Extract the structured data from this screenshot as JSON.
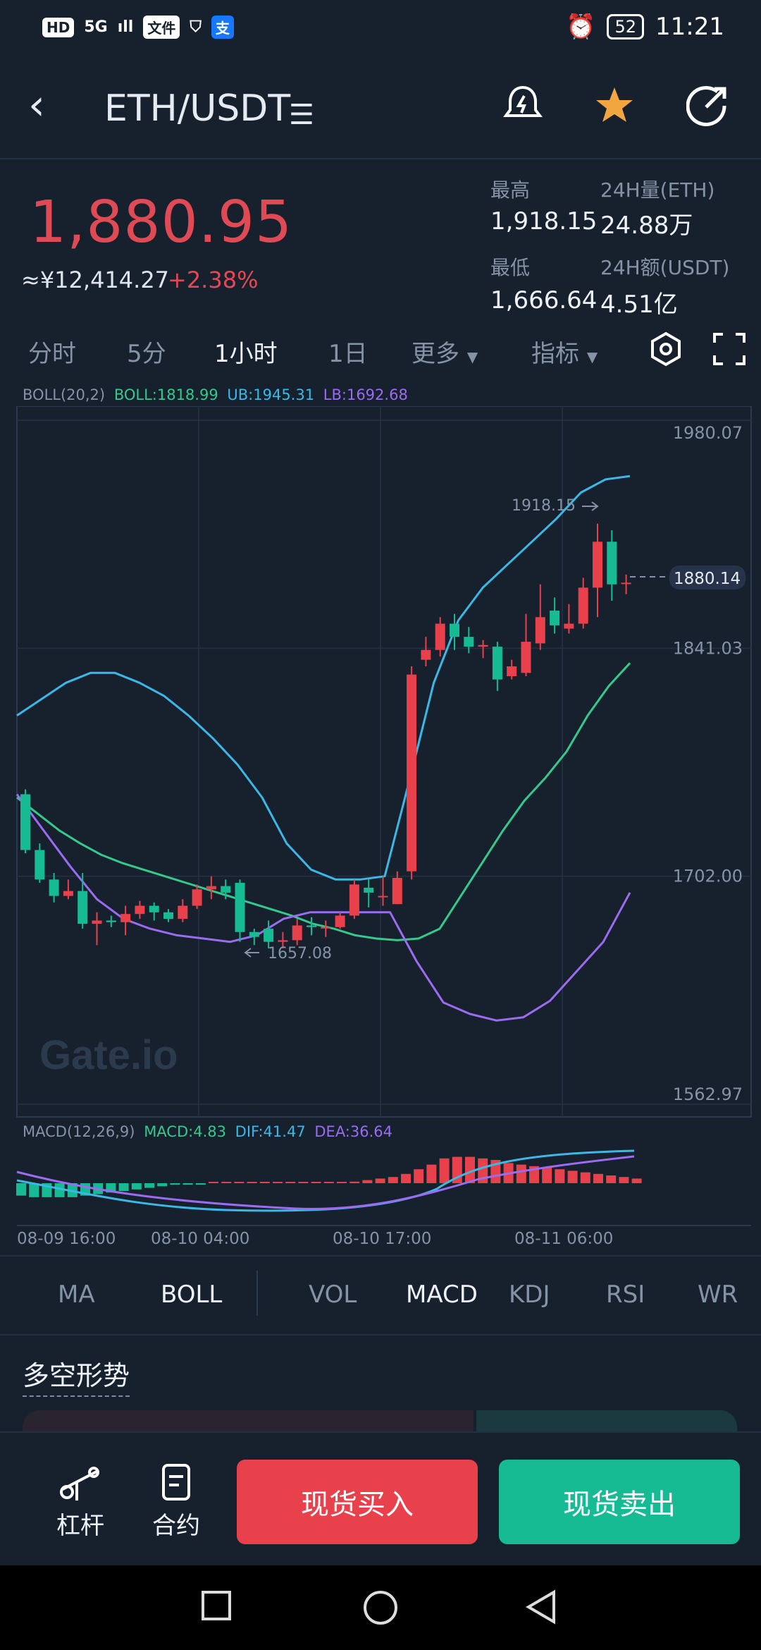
{
  "status_bar": {
    "left": [
      "HD",
      "5G",
      "ıll",
      "文件",
      "⛉",
      "支"
    ],
    "battery": "52",
    "time": "11:21"
  },
  "header": {
    "back_icon": "chevron-left-icon",
    "pair": "ETH/USDT",
    "pair_menu_icon": "list-icon",
    "alert_icon": "bell-lightning-icon",
    "favorite_icon": "star-icon",
    "share_icon": "share-icon"
  },
  "ticker": {
    "price": "1,880.95",
    "cny": "≈¥12,414.27",
    "change": "+2.38%",
    "high_label": "最高",
    "high": "1,918.15",
    "low_label": "最低",
    "low": "1,666.64",
    "vol_label": "24H量(ETH)",
    "vol": "24.88万",
    "amt_label": "24H额(USDT)",
    "amt": "4.51亿"
  },
  "timeframes": {
    "items": [
      "分时",
      "5分",
      "1小时",
      "1日",
      "更多",
      "指标"
    ],
    "active": "1小时",
    "settings_icon": "hexagon-gear-icon",
    "fullscreen_icon": "fullscreen-icon"
  },
  "chart_data": {
    "type": "candlestick",
    "main_legend": {
      "label": "BOLL(20,2)",
      "boll": "BOLL:1818.99",
      "ub": "UB:1945.31",
      "lb": "LB:1692.68"
    },
    "y_ticks": [
      "1980.07",
      "1841.03",
      "1702.00",
      "1562.97"
    ],
    "y_range": [
      1562.97,
      1980.07
    ],
    "high_marker": "1918.15",
    "low_marker": "1657.08",
    "last_price_tag": "1880.14",
    "watermark": "Gate.io",
    "candles": [
      [
        1752,
        1718,
        1755,
        1716
      ],
      [
        1718,
        1700,
        1722,
        1698
      ],
      [
        1700,
        1690,
        1704,
        1686
      ],
      [
        1690,
        1693,
        1700,
        1688
      ],
      [
        1693,
        1673,
        1704,
        1670
      ],
      [
        1673,
        1675,
        1680,
        1660
      ],
      [
        1675,
        1674,
        1678,
        1671
      ],
      [
        1674,
        1679,
        1684,
        1666
      ],
      [
        1679,
        1684,
        1687,
        1676
      ],
      [
        1684,
        1680,
        1686,
        1675
      ],
      [
        1680,
        1676,
        1682,
        1674
      ],
      [
        1676,
        1684,
        1688,
        1674
      ],
      [
        1684,
        1694,
        1697,
        1682
      ],
      [
        1694,
        1696,
        1702,
        1688
      ],
      [
        1696,
        1692,
        1700,
        1688
      ],
      [
        1698,
        1668,
        1700,
        1662
      ],
      [
        1668,
        1665,
        1670,
        1660
      ],
      [
        1670,
        1662,
        1675,
        1658
      ],
      [
        1662,
        1663,
        1668,
        1658
      ],
      [
        1663,
        1672,
        1676,
        1660
      ],
      [
        1672,
        1671,
        1677,
        1666
      ],
      [
        1671,
        1671,
        1675,
        1665
      ],
      [
        1671,
        1678,
        1680,
        1670
      ],
      [
        1678,
        1697,
        1700,
        1676
      ],
      [
        1695,
        1692,
        1700,
        1683
      ],
      [
        1690,
        1690,
        1702,
        1684
      ],
      [
        1685,
        1701,
        1705,
        1685
      ],
      [
        1705,
        1825,
        1830,
        1700
      ],
      [
        1834,
        1840,
        1848,
        1830
      ],
      [
        1840,
        1856,
        1860,
        1836
      ],
      [
        1856,
        1848,
        1862,
        1840
      ],
      [
        1848,
        1842,
        1854,
        1838
      ],
      [
        1842,
        1843,
        1846,
        1835
      ],
      [
        1842,
        1822,
        1845,
        1815
      ],
      [
        1824,
        1830,
        1834,
        1822
      ],
      [
        1826,
        1845,
        1862,
        1824
      ],
      [
        1844,
        1860,
        1880,
        1840
      ],
      [
        1864,
        1855,
        1872,
        1850
      ],
      [
        1853,
        1856,
        1868,
        1850
      ],
      [
        1856,
        1878,
        1884,
        1853
      ],
      [
        1878,
        1906,
        1917,
        1860
      ],
      [
        1906,
        1880,
        1913,
        1870
      ],
      [
        1881,
        1881,
        1886,
        1874
      ]
    ],
    "boll_mid": [
      1750,
      1740,
      1730,
      1722,
      1715,
      1710,
      1706,
      1702,
      1698,
      1694,
      1690,
      1686,
      1682,
      1678,
      1673,
      1670,
      1666,
      1664,
      1663,
      1664,
      1670,
      1690,
      1710,
      1730,
      1748,
      1762,
      1778,
      1800,
      1818,
      1832
    ],
    "boll_ub": [
      1800,
      1810,
      1820,
      1826,
      1826,
      1820,
      1812,
      1800,
      1786,
      1770,
      1750,
      1722,
      1706,
      1700,
      1700,
      1702,
      1760,
      1820,
      1858,
      1878,
      1892,
      1906,
      1920,
      1936,
      1944,
      1946
    ],
    "boll_lb": [
      1752,
      1730,
      1708,
      1688,
      1676,
      1670,
      1666,
      1664,
      1662,
      1666,
      1676,
      1680,
      1680,
      1680,
      1680,
      1650,
      1625,
      1618,
      1614,
      1616,
      1626,
      1644,
      1662,
      1692
    ],
    "macd_legend": {
      "label": "MACD(12,26,9)",
      "macd": "MACD:4.83",
      "dif": "DIF:41.47",
      "dea": "DEA:36.64"
    },
    "macd_hist": [
      -8,
      -9,
      -9,
      -9,
      -9,
      -8,
      -7,
      -6,
      -5,
      -4,
      -3,
      -2,
      -1,
      -1,
      -1,
      0,
      0,
      0,
      0,
      0,
      0,
      0,
      0,
      0,
      0,
      0,
      1,
      2,
      3,
      4,
      6,
      9,
      12,
      16,
      17,
      17,
      16,
      15,
      13,
      12,
      11,
      10,
      9,
      8,
      7,
      6,
      5,
      4,
      3
    ],
    "x_labels": [
      "08-09 16:00",
      "08-10 04:00",
      "08-10 17:00",
      "08-11 06:00"
    ]
  },
  "indicator_tabs": {
    "items": [
      "MA",
      "BOLL",
      "VOL",
      "MACD",
      "KDJ",
      "RSI",
      "WR"
    ],
    "active_main": "BOLL",
    "active_sub": "MACD"
  },
  "section": {
    "title": "多空形势"
  },
  "bottom": {
    "leverage": "杠杆",
    "contract": "合约",
    "buy": "现货买入",
    "sell": "现货卖出"
  },
  "colors": {
    "up": "#e8414b",
    "down": "#17bb93",
    "mid": "#35c98c",
    "ub": "#3bb8e6",
    "lb": "#9b6bf0"
  }
}
